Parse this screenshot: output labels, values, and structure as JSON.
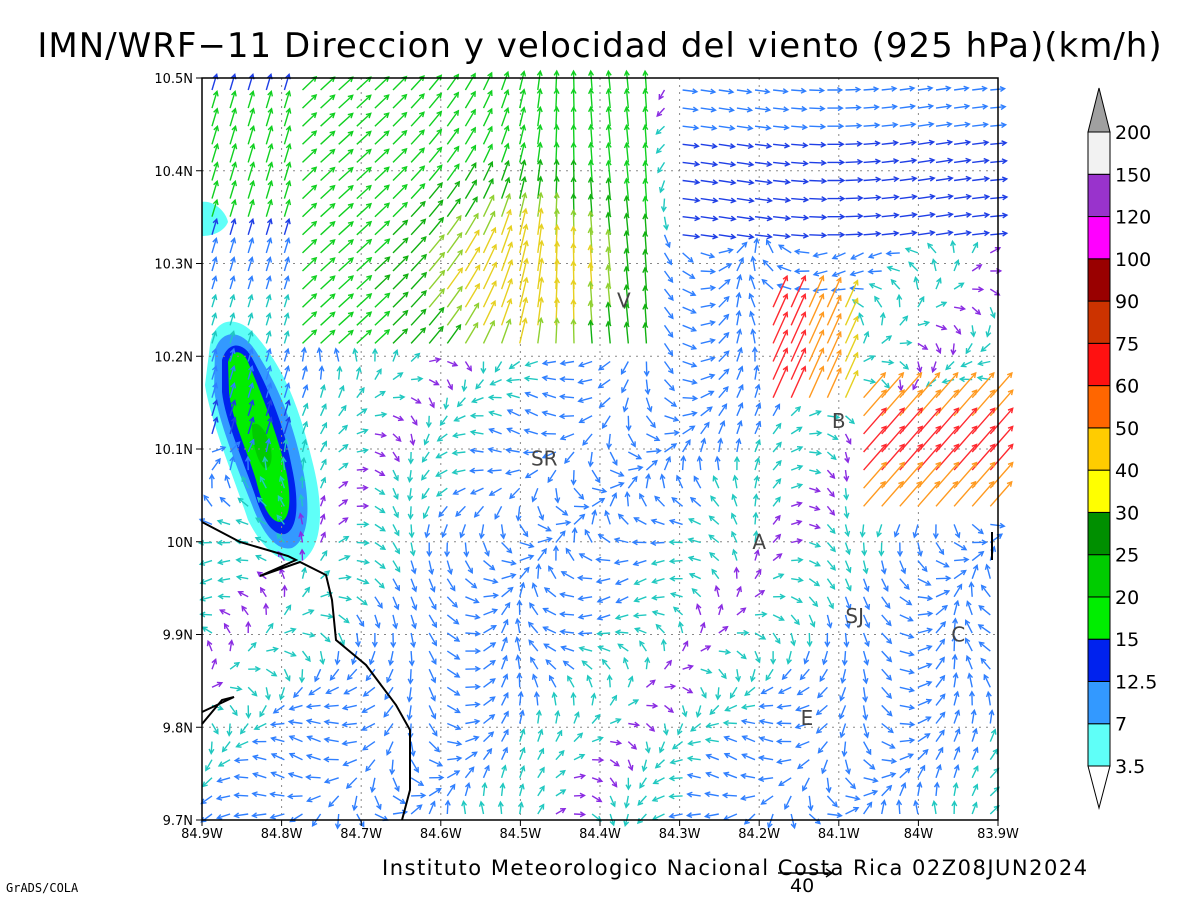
{
  "title": "IMN/WRF−11 Direccion y velocidad del viento (925 hPa)(km/h)",
  "footer": "Instituto Meteorologico Nacional Costa Rica 02Z08JUN2024",
  "credit": "GrADS/COLA",
  "reference_vector": {
    "label": "40",
    "value": 40,
    "unit": "km/h"
  },
  "chart_data": {
    "type": "map",
    "variable": "wind 925 hPa",
    "lon_range": [
      -84.9,
      -83.9
    ],
    "lat_range": [
      9.7,
      10.5
    ],
    "x_tick_labels": [
      "84.9W",
      "84.8W",
      "84.7W",
      "84.6W",
      "84.5W",
      "84.4W",
      "84.3W",
      "84.2W",
      "84.1W",
      "84W",
      "83.9W"
    ],
    "y_tick_labels": [
      "9.7N",
      "9.8N",
      "9.9N",
      "10N",
      "10.1N",
      "10.2N",
      "10.3N",
      "10.4N",
      "10.5N"
    ],
    "grid": true,
    "colorbar": {
      "labels": [
        "3.5",
        "7",
        "12.5",
        "15",
        "20",
        "25",
        "30",
        "40",
        "50",
        "60",
        "75",
        "90",
        "100",
        "120",
        "150",
        "200"
      ],
      "colors": [
        "#5ffff8",
        "#3399ff",
        "#0022ee",
        "#00ee00",
        "#00cc00",
        "#008f00",
        "#ffff00",
        "#ffcc00",
        "#ff6600",
        "#ff1111",
        "#cc3300",
        "#990000",
        "#ff00ff",
        "#9933cc",
        "#f2f2f2",
        "#a0a0a0"
      ]
    },
    "place_labels": [
      {
        "text": "V",
        "lon": -84.37,
        "lat": 10.26
      },
      {
        "text": "SR",
        "lon": -84.47,
        "lat": 10.09
      },
      {
        "text": "B",
        "lon": -84.1,
        "lat": 10.13
      },
      {
        "text": "A",
        "lon": -84.2,
        "lat": 10.0
      },
      {
        "text": "SJ",
        "lon": -84.08,
        "lat": 9.92
      },
      {
        "text": "C",
        "lon": -83.95,
        "lat": 9.9
      },
      {
        "text": "E",
        "lon": -84.14,
        "lat": 9.81
      }
    ]
  }
}
